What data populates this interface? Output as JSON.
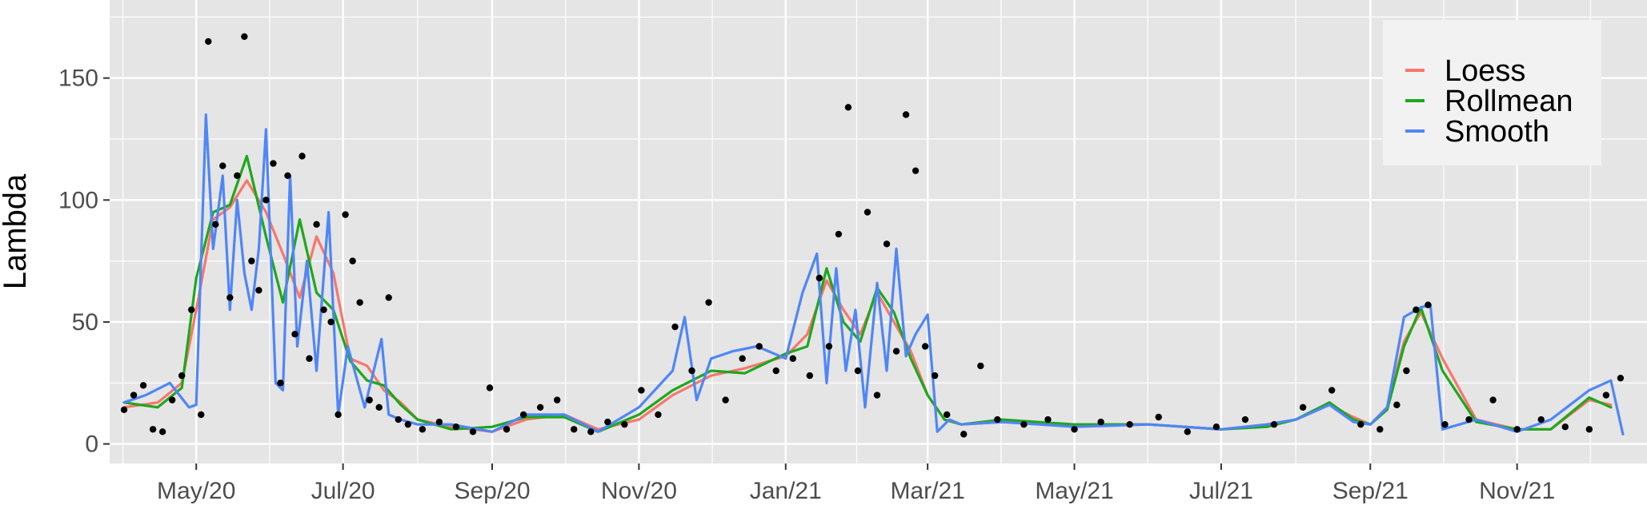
{
  "chart_data": {
    "type": "line",
    "xlabel": "",
    "ylabel": "Lambda",
    "xlim": [
      "2020-03-26",
      "2021-12-25"
    ],
    "ylim": [
      -8,
      182
    ],
    "x_ticks": [
      "2020-05-01",
      "2020-07-01",
      "2020-09-01",
      "2020-11-01",
      "2021-01-01",
      "2021-03-01",
      "2021-05-01",
      "2021-07-01",
      "2021-09-01",
      "2021-11-01"
    ],
    "x_tick_labels": [
      "May/20",
      "Jul/20",
      "Sep/20",
      "Nov/20",
      "Jan/21",
      "Mar/21",
      "May/21",
      "Jul/21",
      "Sep/21",
      "Nov/21"
    ],
    "y_ticks": [
      0,
      50,
      100,
      150
    ],
    "y_tick_labels": [
      "0",
      "50",
      "100",
      "150"
    ],
    "grid": true,
    "legend": {
      "position": "top-right",
      "entries": [
        {
          "label": "Loess",
          "color": "#F8766D"
        },
        {
          "label": "Rollmean",
          "color": "#1DA81D"
        },
        {
          "label": "Smooth",
          "color": "#4F86F7"
        }
      ]
    },
    "colors": {
      "panel": "#E5E5E5",
      "grid": "#FFFFFF",
      "points": "#000000"
    },
    "series": [
      {
        "name": "Loess",
        "x": [
          "2020-04-01",
          "2020-04-15",
          "2020-04-25",
          "2020-05-01",
          "2020-05-08",
          "2020-05-15",
          "2020-05-22",
          "2020-05-30",
          "2020-06-06",
          "2020-06-13",
          "2020-06-20",
          "2020-06-27",
          "2020-07-04",
          "2020-07-11",
          "2020-07-18",
          "2020-07-25",
          "2020-08-01",
          "2020-08-15",
          "2020-09-01",
          "2020-09-15",
          "2020-10-01",
          "2020-10-15",
          "2020-11-01",
          "2020-11-15",
          "2020-12-01",
          "2020-12-15",
          "2021-01-01",
          "2021-01-10",
          "2021-01-18",
          "2021-01-25",
          "2021-02-01",
          "2021-02-08",
          "2021-02-15",
          "2021-02-22",
          "2021-03-01",
          "2021-03-08",
          "2021-03-15",
          "2021-04-01",
          "2021-05-01",
          "2021-06-01",
          "2021-07-01",
          "2021-07-20",
          "2021-08-01",
          "2021-08-15",
          "2021-08-25",
          "2021-09-01",
          "2021-09-08",
          "2021-09-15",
          "2021-09-22",
          "2021-10-01",
          "2021-10-15",
          "2021-11-01",
          "2021-11-15",
          "2021-12-01",
          "2021-12-10"
        ],
        "y": [
          15,
          17,
          25,
          55,
          92,
          97,
          108,
          95,
          78,
          60,
          85,
          70,
          35,
          32,
          22,
          17,
          10,
          7,
          5,
          10,
          12,
          6,
          10,
          20,
          28,
          31,
          36,
          45,
          67,
          55,
          45,
          62,
          50,
          38,
          20,
          10,
          8,
          9,
          8,
          8,
          6,
          8,
          10,
          16,
          11,
          8,
          15,
          42,
          54,
          35,
          10,
          6,
          6,
          18,
          16
        ]
      },
      {
        "name": "Rollmean",
        "x": [
          "2020-04-01",
          "2020-04-15",
          "2020-04-25",
          "2020-05-01",
          "2020-05-08",
          "2020-05-15",
          "2020-05-22",
          "2020-05-30",
          "2020-06-06",
          "2020-06-13",
          "2020-06-20",
          "2020-06-27",
          "2020-07-04",
          "2020-07-11",
          "2020-07-18",
          "2020-07-25",
          "2020-08-01",
          "2020-08-15",
          "2020-09-01",
          "2020-09-15",
          "2020-10-01",
          "2020-10-15",
          "2020-11-01",
          "2020-11-15",
          "2020-12-01",
          "2020-12-15",
          "2021-01-01",
          "2021-01-10",
          "2021-01-18",
          "2021-01-25",
          "2021-02-01",
          "2021-02-08",
          "2021-02-15",
          "2021-02-22",
          "2021-03-01",
          "2021-03-08",
          "2021-03-15",
          "2021-04-01",
          "2021-05-01",
          "2021-06-01",
          "2021-07-01",
          "2021-07-20",
          "2021-08-01",
          "2021-08-15",
          "2021-08-25",
          "2021-09-01",
          "2021-09-08",
          "2021-09-15",
          "2021-09-22",
          "2021-10-01",
          "2021-10-15",
          "2021-11-01",
          "2021-11-15",
          "2021-12-01",
          "2021-12-10"
        ],
        "y": [
          17,
          15,
          23,
          68,
          95,
          98,
          118,
          85,
          58,
          92,
          62,
          55,
          34,
          26,
          24,
          16,
          10,
          6,
          7,
          11,
          11,
          5,
          12,
          22,
          30,
          29,
          37,
          40,
          72,
          50,
          42,
          64,
          54,
          35,
          20,
          10,
          8,
          10,
          8,
          8,
          6,
          7,
          10,
          17,
          10,
          8,
          14,
          40,
          56,
          30,
          9,
          6,
          6,
          19,
          15
        ]
      },
      {
        "name": "Smooth",
        "x": [
          "2020-04-01",
          "2020-04-10",
          "2020-04-20",
          "2020-04-28",
          "2020-05-01",
          "2020-05-05",
          "2020-05-08",
          "2020-05-12",
          "2020-05-15",
          "2020-05-18",
          "2020-05-21",
          "2020-05-24",
          "2020-05-27",
          "2020-05-30",
          "2020-06-03",
          "2020-06-06",
          "2020-06-09",
          "2020-06-12",
          "2020-06-16",
          "2020-06-20",
          "2020-06-25",
          "2020-06-29",
          "2020-07-03",
          "2020-07-10",
          "2020-07-17",
          "2020-07-20",
          "2020-07-25",
          "2020-08-01",
          "2020-08-15",
          "2020-09-01",
          "2020-09-15",
          "2020-10-01",
          "2020-10-15",
          "2020-11-01",
          "2020-11-15",
          "2020-11-20",
          "2020-11-25",
          "2020-12-01",
          "2020-12-10",
          "2020-12-20",
          "2021-01-01",
          "2021-01-08",
          "2021-01-14",
          "2021-01-18",
          "2021-01-22",
          "2021-01-26",
          "2021-01-30",
          "2021-02-03",
          "2021-02-08",
          "2021-02-12",
          "2021-02-16",
          "2021-02-20",
          "2021-02-24",
          "2021-03-01",
          "2021-03-05",
          "2021-03-10",
          "2021-03-15",
          "2021-04-01",
          "2021-05-01",
          "2021-06-01",
          "2021-07-01",
          "2021-07-20",
          "2021-08-01",
          "2021-08-15",
          "2021-08-25",
          "2021-09-01",
          "2021-09-08",
          "2021-09-15",
          "2021-09-22",
          "2021-09-26",
          "2021-10-01",
          "2021-10-15",
          "2021-11-01",
          "2021-11-15",
          "2021-12-01",
          "2021-12-10",
          "2021-12-15"
        ],
        "y": [
          17,
          20,
          25,
          15,
          16,
          135,
          80,
          110,
          55,
          100,
          70,
          55,
          80,
          129,
          25,
          22,
          110,
          40,
          75,
          30,
          95,
          12,
          40,
          15,
          43,
          12,
          10,
          8,
          8,
          5,
          12,
          12,
          5,
          15,
          30,
          52,
          18,
          35,
          38,
          40,
          35,
          62,
          78,
          25,
          72,
          30,
          55,
          15,
          66,
          30,
          80,
          36,
          45,
          53,
          5,
          10,
          8,
          9,
          7,
          8,
          6,
          8,
          10,
          16,
          9,
          8,
          15,
          52,
          56,
          57,
          6,
          10,
          5,
          10,
          22,
          26,
          4
        ]
      }
    ],
    "points": {
      "x": [
        "2020-04-01",
        "2020-04-05",
        "2020-04-09",
        "2020-04-13",
        "2020-04-17",
        "2020-04-21",
        "2020-04-25",
        "2020-04-29",
        "2020-05-03",
        "2020-05-06",
        "2020-05-09",
        "2020-05-12",
        "2020-05-15",
        "2020-05-18",
        "2020-05-21",
        "2020-05-24",
        "2020-05-27",
        "2020-05-30",
        "2020-06-02",
        "2020-06-05",
        "2020-06-08",
        "2020-06-11",
        "2020-06-14",
        "2020-06-17",
        "2020-06-20",
        "2020-06-23",
        "2020-06-26",
        "2020-06-29",
        "2020-07-02",
        "2020-07-05",
        "2020-07-08",
        "2020-07-12",
        "2020-07-16",
        "2020-07-20",
        "2020-07-24",
        "2020-07-28",
        "2020-08-03",
        "2020-08-10",
        "2020-08-17",
        "2020-08-24",
        "2020-08-31",
        "2020-09-07",
        "2020-09-14",
        "2020-09-21",
        "2020-09-28",
        "2020-10-05",
        "2020-10-12",
        "2020-10-19",
        "2020-10-26",
        "2020-11-02",
        "2020-11-09",
        "2020-11-16",
        "2020-11-23",
        "2020-11-30",
        "2020-12-07",
        "2020-12-14",
        "2020-12-21",
        "2020-12-28",
        "2021-01-04",
        "2021-01-11",
        "2021-01-15",
        "2021-01-19",
        "2021-01-23",
        "2021-01-27",
        "2021-01-31",
        "2021-02-04",
        "2021-02-08",
        "2021-02-12",
        "2021-02-16",
        "2021-02-20",
        "2021-02-24",
        "2021-02-28",
        "2021-03-04",
        "2021-03-09",
        "2021-03-16",
        "2021-03-23",
        "2021-03-30",
        "2021-04-10",
        "2021-04-20",
        "2021-05-01",
        "2021-05-12",
        "2021-05-24",
        "2021-06-05",
        "2021-06-17",
        "2021-06-29",
        "2021-07-11",
        "2021-07-23",
        "2021-08-04",
        "2021-08-16",
        "2021-08-28",
        "2021-09-05",
        "2021-09-12",
        "2021-09-16",
        "2021-09-20",
        "2021-09-25",
        "2021-10-02",
        "2021-10-12",
        "2021-10-22",
        "2021-11-01",
        "2021-11-11",
        "2021-11-21",
        "2021-12-01",
        "2021-12-08",
        "2021-12-14"
      ],
      "y": [
        14,
        20,
        24,
        6,
        5,
        18,
        28,
        55,
        12,
        165,
        90,
        114,
        60,
        110,
        167,
        75,
        63,
        100,
        115,
        25,
        110,
        45,
        118,
        35,
        90,
        55,
        50,
        12,
        94,
        75,
        58,
        18,
        15,
        60,
        10,
        8,
        6,
        9,
        7,
        5,
        23,
        6,
        12,
        15,
        18,
        6,
        5,
        9,
        8,
        22,
        12,
        48,
        30,
        58,
        18,
        35,
        40,
        30,
        35,
        28,
        68,
        40,
        86,
        138,
        30,
        95,
        20,
        82,
        38,
        135,
        112,
        40,
        28,
        12,
        4,
        32,
        10,
        8,
        10,
        6,
        9,
        8,
        11,
        5,
        7,
        10,
        8,
        15,
        22,
        8,
        6,
        16,
        30,
        55,
        57,
        8,
        10,
        18,
        6,
        10,
        7,
        6,
        20,
        27
      ]
    }
  }
}
